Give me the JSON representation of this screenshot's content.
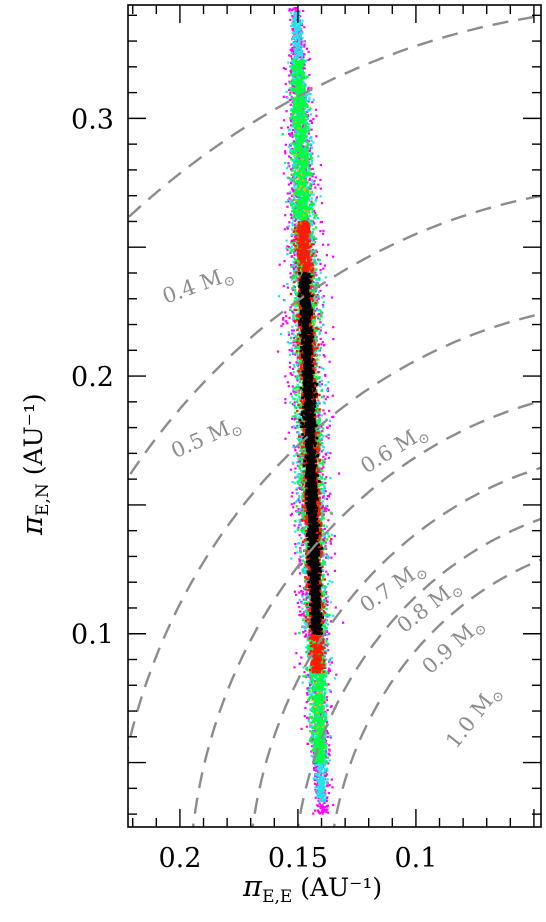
{
  "chart_data": {
    "type": "scatter",
    "xlabel": "π",
    "xlabel_sub": "E,E",
    "xlabel_unit": "(AU⁻¹)",
    "ylabel": "π",
    "ylabel_sub": "E,N",
    "ylabel_unit": "(AU⁻¹)",
    "xlim": [
      0.222,
      0.047
    ],
    "ylim": [
      0.025,
      0.344
    ],
    "x_inverted": true,
    "x_ticks": [
      0.2,
      0.15,
      0.1
    ],
    "x_tick_labels": [
      "0.2",
      "0.15",
      "0.1"
    ],
    "y_ticks": [
      0.1,
      0.2,
      0.3
    ],
    "y_tick_labels": [
      "0.1",
      "0.2",
      "0.3"
    ],
    "grid": false,
    "distribution": {
      "description_levels": [
        "magenta",
        "cyan",
        "green",
        "red",
        "black"
      ],
      "colors": {
        "magenta": "#ff00ff",
        "cyan": "#22e6e6",
        "green": "#00ff40",
        "orange": "#ffb000",
        "red": "#ff1a00",
        "black": "#000000"
      },
      "center_x": 0.145,
      "center_y": 0.18,
      "y_extent": [
        0.03,
        0.343
      ],
      "dense_y_extent": [
        0.1,
        0.24
      ]
    },
    "mass_curves": [
      {
        "label": "0.4 M",
        "mass": 0.4,
        "radius": 0.343
      },
      {
        "label": "0.5 M",
        "mass": 0.5,
        "radius": 0.274
      },
      {
        "label": "0.6 M",
        "mass": 0.6,
        "radius": 0.229
      },
      {
        "label": "0.7 M",
        "mass": 0.7,
        "radius": 0.196
      },
      {
        "label": "0.8 M",
        "mass": 0.8,
        "radius": 0.171
      },
      {
        "label": "0.9 M",
        "mass": 0.9,
        "radius": 0.152
      },
      {
        "label": "1.0 M",
        "mass": 1.0,
        "radius": 0.137
      }
    ],
    "sun_symbol": "⊙",
    "curve_color": "#8c8c8c"
  }
}
